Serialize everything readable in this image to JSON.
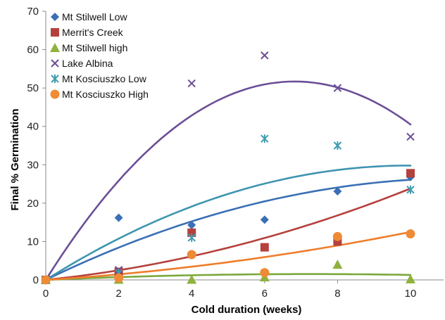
{
  "chart_data": {
    "type": "scatter",
    "xlabel": "Cold duration (weeks)",
    "ylabel": "Final % Germination",
    "xlim": [
      0,
      10
    ],
    "ylim": [
      0,
      70
    ],
    "xticks": [
      0,
      2,
      4,
      6,
      8,
      10
    ],
    "yticks": [
      0,
      10,
      20,
      30,
      40,
      50,
      60,
      70
    ],
    "grid": false,
    "legend_position": "top-left",
    "trendlines": "polynomial order 2",
    "series": [
      {
        "name": "Mt Stilwell Low",
        "marker": "diamond",
        "color": "#3a6fb5",
        "x": [
          0,
          2,
          4,
          6,
          8,
          10
        ],
        "y": [
          0,
          16.2,
          14.3,
          15.7,
          23.1,
          26.8
        ],
        "trend_color": "#3a6fb5",
        "trend_coef": [
          0.0,
          4.61,
          -0.2
        ]
      },
      {
        "name": "Merrit's Creek",
        "marker": "square",
        "color": "#b5413d",
        "x": [
          0,
          2,
          4,
          6,
          8,
          10
        ],
        "y": [
          0,
          2.1,
          12.3,
          8.5,
          10.0,
          27.8
        ],
        "trend_color": "#b5413d",
        "trend_coef": [
          0.0,
          0.98,
          0.14
        ]
      },
      {
        "name": "Mt Stilwell high",
        "marker": "triangle",
        "color": "#8fb13e",
        "x": [
          0,
          2,
          4,
          6,
          8,
          10
        ],
        "y": [
          0,
          0.1,
          0.1,
          0.7,
          4.0,
          0.2
        ],
        "trend_color": "#7aa83c",
        "trend_coef": [
          0.0,
          0.42,
          -0.029
        ]
      },
      {
        "name": "Lake Albina",
        "marker": "x",
        "color": "#6b4f97",
        "x": [
          0,
          2,
          4,
          6,
          8,
          10
        ],
        "y": [
          0,
          2.6,
          51.2,
          58.5,
          50.0,
          37.3
        ],
        "trend_color": "#6b4f97",
        "trend_coef": [
          0.0,
          15.15,
          -1.11
        ]
      },
      {
        "name": "Mt Kosciuszko Low",
        "marker": "asterisk",
        "color": "#3f9cb0",
        "x": [
          0,
          2,
          4,
          6,
          8,
          10
        ],
        "y": [
          0,
          1.8,
          11.0,
          36.8,
          35.0,
          23.5
        ],
        "trend_color": "#3f95b0",
        "trend_coef": [
          0.0,
          5.98,
          -0.3
        ]
      },
      {
        "name": "Mt Kosciuszko High",
        "marker": "circle",
        "color": "#ef8a37",
        "x": [
          0,
          2,
          4,
          6,
          8,
          10
        ],
        "y": [
          0,
          0.5,
          6.6,
          1.9,
          11.3,
          12.0
        ],
        "trend_color": "#ef7d2a",
        "trend_coef": [
          0.0,
          0.6,
          0.065
        ]
      }
    ]
  }
}
